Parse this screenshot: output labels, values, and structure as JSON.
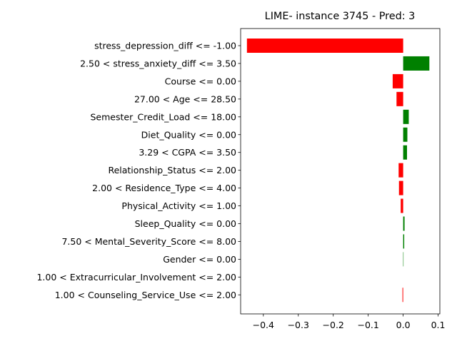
{
  "chart_data": {
    "type": "bar",
    "orientation": "horizontal",
    "title": "LIME- instance 3745 - Pred: 3",
    "xlabel": "",
    "ylabel": "",
    "xlim": [
      -0.465,
      0.105
    ],
    "xticks": [
      -0.4,
      -0.3,
      -0.2,
      -0.1,
      0.0,
      0.1
    ],
    "xtick_labels": [
      "−0.4",
      "−0.3",
      "−0.2",
      "−0.1",
      "0.0",
      "0.1"
    ],
    "grid": false,
    "colors": {
      "positive": "#008000",
      "negative": "#ff0000"
    },
    "categories": [
      "stress_depression_diff <= -1.00",
      "2.50 < stress_anxiety_diff <= 3.50",
      "Course <= 0.00",
      "27.00 < Age <= 28.50",
      "Semester_Credit_Load <= 18.00",
      "Diet_Quality <= 0.00",
      "3.29 < CGPA <= 3.50",
      "Relationship_Status <= 2.00",
      "2.00 < Residence_Type <= 4.00",
      "Physical_Activity <= 1.00",
      "Sleep_Quality <= 0.00",
      "7.50 < Mental_Severity_Score <= 8.00",
      "Gender <= 0.00",
      "1.00 < Extracurricular_Involvement <= 2.00",
      "1.00 < Counseling_Service_Use <= 2.00"
    ],
    "values": [
      -0.447,
      0.075,
      -0.03,
      -0.019,
      0.016,
      0.012,
      0.011,
      -0.013,
      -0.012,
      -0.007,
      0.004,
      0.003,
      0.001,
      0.0,
      -0.002
    ]
  }
}
